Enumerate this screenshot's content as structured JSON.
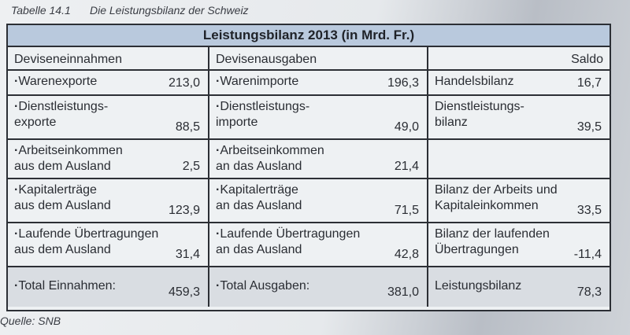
{
  "caption": {
    "number": "Tabelle 14.1",
    "title": "Die Leistungsbilanz der Schweiz"
  },
  "table": {
    "title": "Leistungsbilanz 2013 (in Mrd. Fr.)",
    "headers": [
      "Deviseneinnahmen",
      "Devisenausgaben",
      "Saldo"
    ],
    "rows": [
      [
        {
          "label": "Warenexporte",
          "value": "213,0"
        },
        {
          "label": "Warenimporte",
          "value": "196,3"
        },
        {
          "label": "Handelsbilanz",
          "value": "16,7"
        }
      ],
      [
        {
          "label": "Dienstleistungs-\nexporte",
          "value": "88,5"
        },
        {
          "label": "Dienstleistungs-\nimporte",
          "value": "49,0"
        },
        {
          "label": "Dienstleistungs-\nbilanz",
          "value": "39,5"
        }
      ],
      [
        {
          "label": "Arbeitseinkommen\naus dem Ausland",
          "value": "2,5"
        },
        {
          "label": "Arbeitseinkommen\nan das Ausland",
          "value": "21,4"
        },
        {
          "label": "",
          "value": ""
        }
      ],
      [
        {
          "label": "Kapitalerträge\naus dem Ausland",
          "value": "123,9"
        },
        {
          "label": "Kapitalerträge\nan das Ausland",
          "value": "71,5"
        },
        {
          "label": "Bilanz der Arbeits und\nKapitaleinkommen",
          "value": "33,5"
        }
      ],
      [
        {
          "label": "Laufende Übertragungen\naus dem Ausland",
          "value": "31,4"
        },
        {
          "label": "Laufende Übertragungen\nan das Ausland",
          "value": "42,8"
        },
        {
          "label": "Bilanz der laufenden\nÜbertragungen",
          "value": "-11,4"
        }
      ]
    ],
    "totals": [
      {
        "label": "Total Einnahmen:",
        "value": "459,3"
      },
      {
        "label": "Total Ausgaben:",
        "value": "381,0"
      },
      {
        "label": "Leistungsbilanz",
        "value": "78,3"
      }
    ]
  },
  "source": "Quelle: SNB"
}
